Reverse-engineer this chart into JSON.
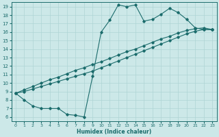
{
  "xlabel": "Humidex (Indice chaleur)",
  "bg_color": "#cce8e8",
  "line_color": "#1a6b6b",
  "grid_color": "#aed4d4",
  "xlim": [
    -0.5,
    23.5
  ],
  "ylim": [
    5.5,
    19.5
  ],
  "xticks": [
    0,
    1,
    2,
    3,
    4,
    5,
    6,
    7,
    8,
    9,
    10,
    11,
    12,
    13,
    14,
    15,
    16,
    17,
    18,
    19,
    20,
    21,
    22,
    23
  ],
  "yticks": [
    6,
    7,
    8,
    9,
    10,
    11,
    12,
    13,
    14,
    15,
    16,
    17,
    18,
    19
  ],
  "line1_x": [
    0,
    1,
    2,
    3,
    4,
    5,
    6,
    7,
    8,
    9,
    10,
    11,
    12,
    13,
    14,
    15,
    16,
    17,
    18,
    19,
    20,
    21,
    22,
    23
  ],
  "line1_y": [
    8.8,
    8.0,
    7.3,
    7.0,
    7.0,
    7.0,
    6.3,
    6.2,
    6.0,
    10.8,
    16.0,
    17.4,
    19.2,
    19.0,
    19.2,
    17.3,
    17.5,
    18.1,
    18.8,
    18.3,
    17.5,
    16.5,
    16.3,
    16.3
  ],
  "line2_x": [
    0,
    1,
    2,
    3,
    4,
    5,
    6,
    7,
    8,
    9,
    10,
    11,
    12,
    13,
    14,
    15,
    16,
    17,
    18,
    19,
    20,
    21,
    22,
    23
  ],
  "line2_y": [
    8.8,
    9.2,
    9.6,
    10.0,
    10.4,
    10.7,
    11.1,
    11.5,
    11.8,
    12.2,
    12.5,
    12.9,
    13.3,
    13.7,
    14.0,
    14.4,
    14.8,
    15.2,
    15.5,
    15.9,
    16.2,
    16.4,
    16.5,
    16.3
  ],
  "line3_x": [
    0,
    1,
    2,
    3,
    4,
    5,
    6,
    7,
    8,
    9,
    10,
    11,
    12,
    13,
    14,
    15,
    16,
    17,
    18,
    19,
    20,
    21,
    22,
    23
  ],
  "line3_y": [
    8.8,
    9.0,
    9.3,
    9.6,
    9.9,
    10.2,
    10.5,
    10.8,
    11.1,
    11.4,
    11.8,
    12.2,
    12.6,
    13.0,
    13.4,
    13.8,
    14.2,
    14.6,
    15.0,
    15.4,
    15.8,
    16.1,
    16.3,
    16.3
  ]
}
